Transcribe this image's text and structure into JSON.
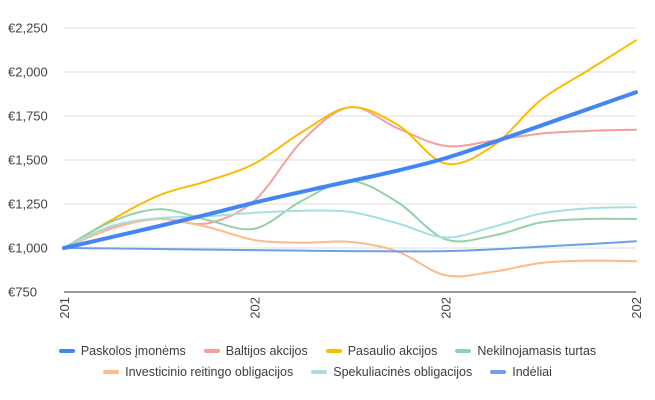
{
  "chart_data": {
    "type": "line",
    "title": "",
    "xlabel": "",
    "ylabel": "",
    "x_ticks": [
      "201",
      "202",
      "202",
      "202"
    ],
    "x": [
      0,
      0.5,
      1,
      1.5,
      2,
      2.5,
      3,
      3.5,
      4,
      4.5,
      5,
      5.5,
      6
    ],
    "ylim": [
      750,
      2250
    ],
    "y_ticks": [
      750,
      1000,
      1250,
      1500,
      1750,
      2000,
      2250
    ],
    "y_tick_labels": [
      "€750",
      "€1,000",
      "€1,250",
      "€1,500",
      "€1,750",
      "€2,000",
      "€2,250"
    ],
    "grid": "horizontal",
    "legend_position": "bottom",
    "series": [
      {
        "name": "Paskolos įmonėms",
        "color": "#4285f4",
        "bold": true,
        "values": [
          1000,
          1062,
          1125,
          1190,
          1258,
          1320,
          1380,
          1440,
          1510,
          1600,
          1695,
          1790,
          1885
        ]
      },
      {
        "name": "Baltijos akcijos",
        "color": "#f4a09c",
        "bold": false,
        "values": [
          1000,
          1115,
          1165,
          1140,
          1270,
          1610,
          1800,
          1680,
          1580,
          1610,
          1650,
          1665,
          1672
        ]
      },
      {
        "name": "Pasaulio akcijos",
        "color": "#fbbc04",
        "bold": false,
        "values": [
          1000,
          1160,
          1300,
          1380,
          1480,
          1660,
          1800,
          1700,
          1480,
          1580,
          1840,
          2010,
          2180
        ]
      },
      {
        "name": "Nekilnojamasis turtas",
        "color": "#93d1a6",
        "bold": false,
        "values": [
          1000,
          1150,
          1220,
          1160,
          1110,
          1270,
          1380,
          1260,
          1050,
          1070,
          1145,
          1165,
          1165
        ]
      },
      {
        "name": "Investicinio reitingo obligacijos",
        "color": "#fdbb8a",
        "bold": false,
        "values": [
          1000,
          1110,
          1165,
          1120,
          1045,
          1030,
          1035,
          980,
          845,
          865,
          915,
          928,
          925
        ]
      },
      {
        "name": "Spekuliacinės obligacijos",
        "color": "#a5dfe0",
        "bold": false,
        "values": [
          1000,
          1125,
          1170,
          1180,
          1200,
          1212,
          1205,
          1140,
          1060,
          1120,
          1195,
          1225,
          1232
        ]
      },
      {
        "name": "Indėliai",
        "color": "#6d9eeb",
        "bold": false,
        "values": [
          1000,
          998,
          994,
          991,
          988,
          985,
          982,
          981,
          982,
          992,
          1008,
          1022,
          1038
        ]
      }
    ]
  }
}
